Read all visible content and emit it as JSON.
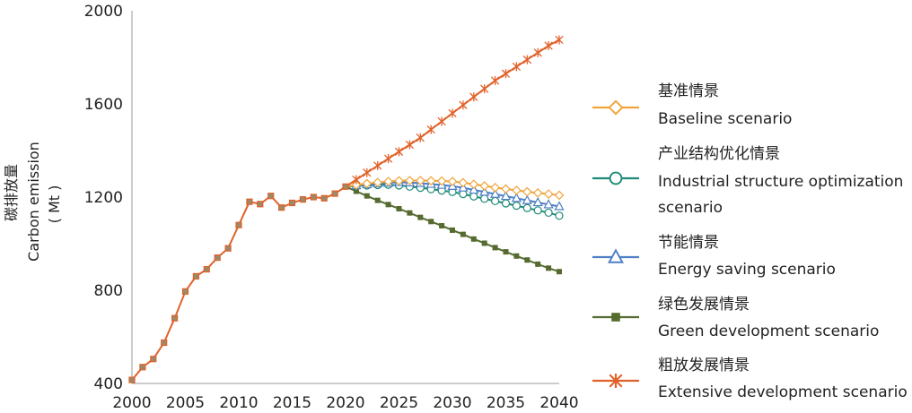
{
  "chart_data": {
    "type": "line",
    "title": "",
    "xlabel": "",
    "ylabel_zh": "碳排放量",
    "ylabel_en": "Carbon emission",
    "ylabel_unit": "( Mt )",
    "xlim": [
      2000,
      2040
    ],
    "ylim": [
      400,
      2000
    ],
    "x_ticks": [
      2000,
      2005,
      2010,
      2015,
      2020,
      2025,
      2030,
      2035,
      2040
    ],
    "y_ticks": [
      400,
      800,
      1200,
      1600,
      2000
    ],
    "grid": false,
    "legend_position": "right",
    "historical": {
      "x": [
        2000,
        2001,
        2002,
        2003,
        2004,
        2005,
        2006,
        2007,
        2008,
        2009,
        2010,
        2011,
        2012,
        2013,
        2014,
        2015,
        2016,
        2017,
        2018,
        2019,
        2020
      ],
      "values": [
        415,
        470,
        505,
        575,
        680,
        795,
        860,
        890,
        940,
        980,
        1080,
        1180,
        1170,
        1205,
        1155,
        1175,
        1190,
        1200,
        1195,
        1215,
        1245
      ]
    },
    "projection_x": [
      2020,
      2021,
      2022,
      2023,
      2024,
      2025,
      2026,
      2027,
      2028,
      2029,
      2030,
      2031,
      2032,
      2033,
      2034,
      2035,
      2036,
      2037,
      2038,
      2039,
      2040
    ],
    "series": [
      {
        "name_zh": "基准情景",
        "name_en": "Baseline scenario",
        "color": "#f0a43a",
        "marker": "diamond",
        "values": [
          1245,
          1252,
          1258,
          1263,
          1267,
          1270,
          1271,
          1271,
          1270,
          1269,
          1267,
          1262,
          1255,
          1248,
          1241,
          1235,
          1229,
          1223,
          1218,
          1213,
          1208
        ]
      },
      {
        "name_zh": "产业结构优化情景",
        "name_en": "Industrial structure optimization",
        "name_en_2": "scenario",
        "color": "#1f8a78",
        "marker": "circle",
        "values": [
          1245,
          1248,
          1250,
          1252,
          1253,
          1250,
          1245,
          1240,
          1234,
          1228,
          1222,
          1213,
          1203,
          1193,
          1183,
          1173,
          1163,
          1153,
          1143,
          1133,
          1120
        ]
      },
      {
        "name_zh": "节能情景",
        "name_en": "Energy saving scenario",
        "color": "#4d7fc4",
        "marker": "triangle",
        "values": [
          1245,
          1250,
          1254,
          1258,
          1261,
          1264,
          1262,
          1260,
          1256,
          1252,
          1247,
          1240,
          1231,
          1222,
          1213,
          1204,
          1195,
          1186,
          1177,
          1168,
          1160
        ]
      },
      {
        "name_zh": "绿色发展情景",
        "name_en": "Green development scenario",
        "color": "#556b2f",
        "marker": "square",
        "values": [
          1245,
          1225,
          1205,
          1186,
          1168,
          1150,
          1132,
          1113,
          1095,
          1077,
          1058,
          1040,
          1020,
          1002,
          983,
          965,
          947,
          930,
          912,
          895,
          880
        ]
      },
      {
        "name_zh": "粗放发展情景",
        "name_en": "Extensive development scenario",
        "color": "#e0622a",
        "marker": "star",
        "values": [
          1245,
          1275,
          1305,
          1335,
          1365,
          1395,
          1425,
          1455,
          1490,
          1525,
          1560,
          1595,
          1630,
          1665,
          1700,
          1730,
          1760,
          1790,
          1820,
          1850,
          1875
        ]
      }
    ]
  }
}
